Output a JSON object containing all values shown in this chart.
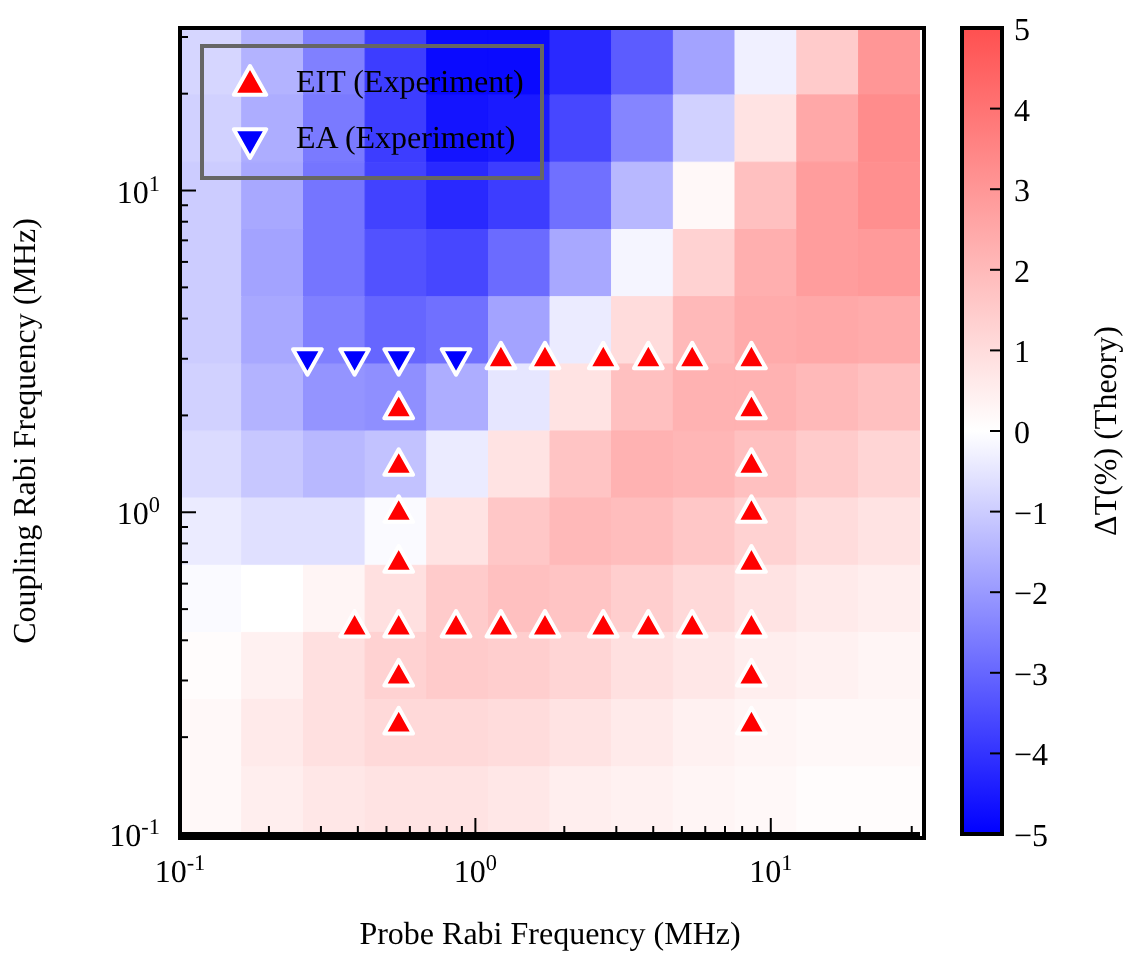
{
  "chart_data": {
    "type": "heatmap",
    "xlabel": "Probe Rabi Frequency (MHz)",
    "ylabel": "Coupling Rabi Frequency (MHz)",
    "clabel": "ΔT(%) (Theory)",
    "log": "xy",
    "xlim": [
      0.1,
      32
    ],
    "ylim": [
      0.1,
      32
    ],
    "xticks": [
      {
        "value": 0.1,
        "label": "10$^{-1}$"
      },
      {
        "value": 0.2,
        "label": null
      },
      {
        "value": 0.3,
        "label": null
      },
      {
        "value": 0.4,
        "label": null
      },
      {
        "value": 0.5,
        "label": null
      },
      {
        "value": 0.6,
        "label": null
      },
      {
        "value": 0.7,
        "label": null
      },
      {
        "value": 0.8,
        "label": null
      },
      {
        "value": 0.9,
        "label": null
      },
      {
        "value": 1,
        "label": "10$^{0}$"
      },
      {
        "value": 2,
        "label": null
      },
      {
        "value": 3,
        "label": null
      },
      {
        "value": 4,
        "label": null
      },
      {
        "value": 5,
        "label": null
      },
      {
        "value": 6,
        "label": null
      },
      {
        "value": 7,
        "label": null
      },
      {
        "value": 8,
        "label": null
      },
      {
        "value": 9,
        "label": null
      },
      {
        "value": 10,
        "label": "10$^{1}$"
      },
      {
        "value": 20,
        "label": null
      },
      {
        "value": 30,
        "label": null
      }
    ],
    "yticks": [
      {
        "value": 0.1,
        "label": "10$^{-1}$"
      },
      {
        "value": 0.2,
        "label": null
      },
      {
        "value": 0.3,
        "label": null
      },
      {
        "value": 0.4,
        "label": null
      },
      {
        "value": 0.5,
        "label": null
      },
      {
        "value": 0.6,
        "label": null
      },
      {
        "value": 0.7,
        "label": null
      },
      {
        "value": 0.8,
        "label": null
      },
      {
        "value": 0.9,
        "label": null
      },
      {
        "value": 1,
        "label": "10$^{0}$"
      },
      {
        "value": 2,
        "label": null
      },
      {
        "value": 3,
        "label": null
      },
      {
        "value": 4,
        "label": null
      },
      {
        "value": 5,
        "label": null
      },
      {
        "value": 6,
        "label": null
      },
      {
        "value": 7,
        "label": null
      },
      {
        "value": 8,
        "label": null
      },
      {
        "value": 9,
        "label": null
      },
      {
        "value": 10,
        "label": "10$^{1}$"
      },
      {
        "value": 20,
        "label": null
      },
      {
        "value": 30,
        "label": null
      }
    ],
    "x": [
      0.127,
      0.206,
      0.333,
      0.538,
      0.87,
      1.41,
      2.27,
      3.68,
      5.95,
      9.62,
      15.6,
      25.2
    ],
    "y": [
      25.2,
      15.6,
      9.62,
      5.95,
      3.68,
      2.27,
      1.41,
      0.87,
      0.538,
      0.333,
      0.206,
      0.127
    ],
    "cells": [
      [
        -0.8,
        -1.5,
        -2.5,
        -3.8,
        -4.8,
        -4.8,
        -4.2,
        -3.2,
        -1.8,
        -0.3,
        1.5,
        3.0
      ],
      [
        -0.9,
        -1.6,
        -2.6,
        -3.8,
        -4.6,
        -4.5,
        -3.6,
        -2.4,
        -0.9,
        0.8,
        2.5,
        3.3
      ],
      [
        -1.0,
        -1.7,
        -2.7,
        -3.7,
        -4.2,
        -3.8,
        -2.8,
        -1.4,
        0.2,
        1.8,
        2.8,
        3.2
      ],
      [
        -1.0,
        -1.8,
        -2.7,
        -3.4,
        -3.6,
        -2.9,
        -1.7,
        -0.2,
        1.3,
        2.3,
        2.8,
        2.9
      ],
      [
        -1.0,
        -1.7,
        -2.5,
        -3.0,
        -2.8,
        -1.8,
        -0.4,
        1.0,
        2.0,
        2.4,
        2.5,
        2.4
      ],
      [
        -0.9,
        -1.5,
        -2.1,
        -2.2,
        -1.6,
        -0.5,
        0.8,
        1.8,
        2.2,
        2.2,
        2.0,
        1.8
      ],
      [
        -0.7,
        -1.1,
        -1.4,
        -1.2,
        -0.4,
        0.8,
        1.7,
        2.2,
        2.1,
        1.8,
        1.5,
        1.2
      ],
      [
        -0.4,
        -0.6,
        -0.6,
        -0.1,
        0.8,
        1.6,
        2.0,
        1.9,
        1.6,
        1.3,
        1.0,
        0.8
      ],
      [
        -0.1,
        0.0,
        0.3,
        0.9,
        1.5,
        1.8,
        1.7,
        1.4,
        1.1,
        0.8,
        0.6,
        0.5
      ],
      [
        0.1,
        0.4,
        0.9,
        1.3,
        1.5,
        1.4,
        1.2,
        0.9,
        0.7,
        0.5,
        0.4,
        0.3
      ],
      [
        0.2,
        0.6,
        0.9,
        1.1,
        1.1,
        1.0,
        0.8,
        0.6,
        0.4,
        0.3,
        0.2,
        0.2
      ],
      [
        0.2,
        0.5,
        0.7,
        0.8,
        0.8,
        0.7,
        0.5,
        0.4,
        0.3,
        0.2,
        0.1,
        0.1
      ]
    ],
    "clim": [
      -5,
      5
    ],
    "cticks": [
      {
        "value": -5,
        "label": "−5"
      },
      {
        "value": -4,
        "label": "−4"
      },
      {
        "value": -3,
        "label": "−3"
      },
      {
        "value": -2,
        "label": "−2"
      },
      {
        "value": -1,
        "label": "−1"
      },
      0,
      1,
      2,
      3,
      4,
      5
    ],
    "legend": "top left",
    "series": [
      {
        "name": "EIT (Experiment)",
        "type": "scatter",
        "marker": "triangle",
        "color": "#ff0000",
        "x": [
          1.22,
          1.72,
          2.71,
          3.85,
          5.42,
          8.6,
          0.55,
          0.55,
          0.55,
          0.55,
          0.55,
          0.55,
          0.55,
          0.39,
          0.86,
          1.22,
          1.72,
          2.71,
          3.85,
          5.42,
          8.6,
          8.6,
          8.6,
          8.6,
          8.6,
          8.6,
          8.6
        ],
        "values": [
          3.0,
          3.0,
          3.0,
          3.0,
          3.0,
          3.0,
          2.1,
          1.4,
          1.0,
          0.7,
          0.44,
          0.31,
          0.22,
          0.44,
          0.44,
          0.44,
          0.44,
          0.44,
          0.44,
          0.44,
          2.1,
          1.4,
          1.0,
          0.7,
          0.44,
          0.31,
          0.22
        ]
      },
      {
        "name": "EA (Experiment)",
        "type": "scatter",
        "marker": "triangle_down",
        "color": "#0000ff",
        "x": [
          0.27,
          0.39,
          0.55,
          0.86
        ],
        "values": [
          3.0,
          3.0,
          3.0,
          3.0
        ]
      }
    ]
  }
}
